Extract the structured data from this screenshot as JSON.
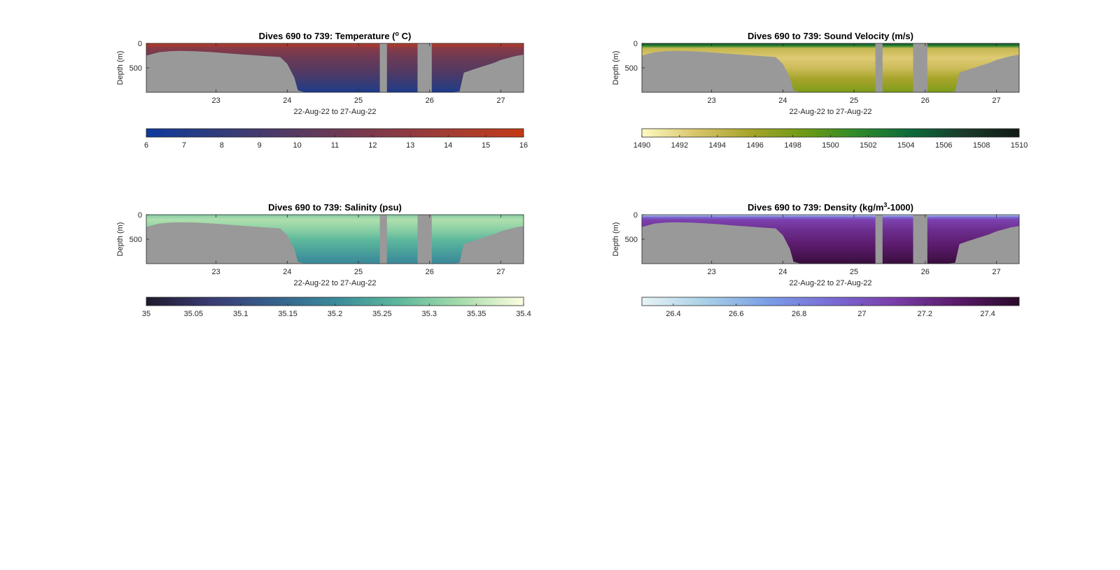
{
  "figure": {
    "background": "#ffffff",
    "land_mask_color": "#999999"
  },
  "chart_data": [
    {
      "type": "heatmap",
      "title_prefix": "Dives 690 to 739: Temperature (",
      "title_sup": "o",
      "title_suffix": " C)",
      "ylabel": "Depth (m)",
      "xlabel": "22-Aug-22 to 27-Aug-22",
      "xlim": [
        22.02,
        27.32
      ],
      "ylim": [
        0,
        1000
      ],
      "y_reversed": true,
      "xticks": [
        {
          "value": 23,
          "label": "23"
        },
        {
          "value": 24,
          "label": "24"
        },
        {
          "value": 25,
          "label": "25"
        },
        {
          "value": 26,
          "label": "26"
        },
        {
          "value": 27,
          "label": "27"
        }
      ],
      "yticks": [
        {
          "value": 0,
          "label": "0"
        },
        {
          "value": 500,
          "label": "500"
        }
      ],
      "gaps": [
        [
          25.3,
          25.4
        ],
        [
          25.83,
          26.03
        ]
      ],
      "seafloor": [
        [
          22.02,
          250
        ],
        [
          22.1,
          220
        ],
        [
          22.2,
          180
        ],
        [
          22.35,
          160
        ],
        [
          22.5,
          155
        ],
        [
          22.7,
          160
        ],
        [
          22.9,
          175
        ],
        [
          23.1,
          195
        ],
        [
          23.3,
          220
        ],
        [
          23.5,
          240
        ],
        [
          23.7,
          260
        ],
        [
          23.9,
          280
        ],
        [
          24.0,
          420
        ],
        [
          24.1,
          700
        ],
        [
          24.15,
          960
        ],
        [
          24.25,
          1000
        ],
        [
          26.3,
          1000
        ],
        [
          26.42,
          980
        ],
        [
          26.48,
          600
        ],
        [
          26.6,
          540
        ],
        [
          26.75,
          470
        ],
        [
          26.9,
          400
        ],
        [
          27.0,
          340
        ],
        [
          27.1,
          300
        ],
        [
          27.2,
          260
        ],
        [
          27.32,
          230
        ]
      ],
      "colorbar": {
        "min": 6,
        "max": 16,
        "ticks": [
          {
            "value": 6,
            "label": "6"
          },
          {
            "value": 7,
            "label": "7"
          },
          {
            "value": 8,
            "label": "8"
          },
          {
            "value": 9,
            "label": "9"
          },
          {
            "value": 10,
            "label": "10"
          },
          {
            "value": 11,
            "label": "11"
          },
          {
            "value": 12,
            "label": "12"
          },
          {
            "value": 13,
            "label": "13"
          },
          {
            "value": 14,
            "label": "14"
          },
          {
            "value": 15,
            "label": "15"
          },
          {
            "value": 16,
            "label": "16"
          }
        ],
        "stops": [
          "#0d3a9e",
          "#2c3c7e",
          "#4a3a68",
          "#6a3a55",
          "#8a3a44",
          "#a83c30",
          "#c23a14"
        ]
      },
      "profile": [
        {
          "depth": 0,
          "value": 15.2
        },
        {
          "depth": 100,
          "value": 12.5
        },
        {
          "depth": 300,
          "value": 11.0
        },
        {
          "depth": 500,
          "value": 10.2
        },
        {
          "depth": 700,
          "value": 9.0
        },
        {
          "depth": 900,
          "value": 7.6
        },
        {
          "depth": 1000,
          "value": 6.8
        }
      ]
    },
    {
      "type": "heatmap",
      "title_prefix": "Dives 690 to 739: Sound Velocity (m/s)",
      "title_sup": "",
      "title_suffix": "",
      "ylabel": "Depth (m)",
      "xlabel": "22-Aug-22 to 27-Aug-22",
      "xlim": [
        22.02,
        27.32
      ],
      "ylim": [
        0,
        1000
      ],
      "y_reversed": true,
      "xticks": [
        {
          "value": 23,
          "label": "23"
        },
        {
          "value": 24,
          "label": "24"
        },
        {
          "value": 25,
          "label": "25"
        },
        {
          "value": 26,
          "label": "26"
        },
        {
          "value": 27,
          "label": "27"
        }
      ],
      "yticks": [
        {
          "value": 0,
          "label": "0"
        },
        {
          "value": 500,
          "label": "500"
        }
      ],
      "gaps": [
        [
          25.3,
          25.4
        ],
        [
          25.83,
          26.03
        ]
      ],
      "seafloor": [
        [
          22.02,
          250
        ],
        [
          22.1,
          220
        ],
        [
          22.2,
          180
        ],
        [
          22.35,
          160
        ],
        [
          22.5,
          155
        ],
        [
          22.7,
          160
        ],
        [
          22.9,
          175
        ],
        [
          23.1,
          195
        ],
        [
          23.3,
          220
        ],
        [
          23.5,
          240
        ],
        [
          23.7,
          260
        ],
        [
          23.9,
          280
        ],
        [
          24.0,
          420
        ],
        [
          24.1,
          700
        ],
        [
          24.15,
          960
        ],
        [
          24.25,
          1000
        ],
        [
          26.3,
          1000
        ],
        [
          26.42,
          980
        ],
        [
          26.48,
          600
        ],
        [
          26.6,
          540
        ],
        [
          26.75,
          470
        ],
        [
          26.9,
          400
        ],
        [
          27.0,
          340
        ],
        [
          27.1,
          300
        ],
        [
          27.2,
          260
        ],
        [
          27.32,
          230
        ]
      ],
      "colorbar": {
        "min": 1490,
        "max": 1510,
        "ticks": [
          {
            "value": 1490,
            "label": "1490"
          },
          {
            "value": 1492,
            "label": "1492"
          },
          {
            "value": 1494,
            "label": "1494"
          },
          {
            "value": 1496,
            "label": "1496"
          },
          {
            "value": 1498,
            "label": "1498"
          },
          {
            "value": 1500,
            "label": "1500"
          },
          {
            "value": 1502,
            "label": "1502"
          },
          {
            "value": 1504,
            "label": "1504"
          },
          {
            "value": 1506,
            "label": "1506"
          },
          {
            "value": 1508,
            "label": "1508"
          },
          {
            "value": 1510,
            "label": "1510"
          }
        ],
        "stops": [
          "#fdfbc2",
          "#d8c46a",
          "#a6a42a",
          "#6e9a14",
          "#2f8a2a",
          "#0c6a3a",
          "#1a3a2a",
          "#111a14"
        ]
      },
      "profile": [
        {
          "depth": 0,
          "value": 1506.0
        },
        {
          "depth": 50,
          "value": 1502.0
        },
        {
          "depth": 100,
          "value": 1494.0
        },
        {
          "depth": 300,
          "value": 1492.5
        },
        {
          "depth": 500,
          "value": 1493.5
        },
        {
          "depth": 700,
          "value": 1495.5
        },
        {
          "depth": 900,
          "value": 1497.0
        },
        {
          "depth": 1000,
          "value": 1498.0
        }
      ]
    },
    {
      "type": "heatmap",
      "title_prefix": "Dives 690 to 739: Salinity (psu)",
      "title_sup": "",
      "title_suffix": "",
      "ylabel": "Depth (m)",
      "xlabel": "22-Aug-22 to 27-Aug-22",
      "xlim": [
        22.02,
        27.32
      ],
      "ylim": [
        0,
        1000
      ],
      "y_reversed": true,
      "xticks": [
        {
          "value": 23,
          "label": "23"
        },
        {
          "value": 24,
          "label": "24"
        },
        {
          "value": 25,
          "label": "25"
        },
        {
          "value": 26,
          "label": "26"
        },
        {
          "value": 27,
          "label": "27"
        }
      ],
      "yticks": [
        {
          "value": 0,
          "label": "0"
        },
        {
          "value": 500,
          "label": "500"
        }
      ],
      "gaps": [
        [
          25.3,
          25.4
        ],
        [
          25.83,
          26.03
        ]
      ],
      "seafloor": [
        [
          22.02,
          250
        ],
        [
          22.1,
          220
        ],
        [
          22.2,
          180
        ],
        [
          22.35,
          160
        ],
        [
          22.5,
          155
        ],
        [
          22.7,
          160
        ],
        [
          22.9,
          175
        ],
        [
          23.1,
          195
        ],
        [
          23.3,
          220
        ],
        [
          23.5,
          240
        ],
        [
          23.7,
          260
        ],
        [
          23.9,
          280
        ],
        [
          24.0,
          420
        ],
        [
          24.1,
          700
        ],
        [
          24.15,
          960
        ],
        [
          24.25,
          1000
        ],
        [
          26.3,
          1000
        ],
        [
          26.42,
          980
        ],
        [
          26.48,
          600
        ],
        [
          26.6,
          540
        ],
        [
          26.75,
          470
        ],
        [
          26.9,
          400
        ],
        [
          27.0,
          340
        ],
        [
          27.1,
          300
        ],
        [
          27.2,
          260
        ],
        [
          27.32,
          230
        ]
      ],
      "colorbar": {
        "min": 35,
        "max": 35.4,
        "ticks": [
          {
            "value": 35,
            "label": "35"
          },
          {
            "value": 35.05,
            "label": "35.05"
          },
          {
            "value": 35.1,
            "label": "35.1"
          },
          {
            "value": 35.15,
            "label": "35.15"
          },
          {
            "value": 35.2,
            "label": "35.2"
          },
          {
            "value": 35.25,
            "label": "35.25"
          },
          {
            "value": 35.3,
            "label": "35.3"
          },
          {
            "value": 35.35,
            "label": "35.35"
          },
          {
            "value": 35.4,
            "label": "35.4"
          }
        ],
        "stops": [
          "#1e1a2c",
          "#3a3a72",
          "#35608c",
          "#3a8a9a",
          "#5cb89c",
          "#a6dcaa",
          "#fdfde0"
        ]
      },
      "profile": [
        {
          "depth": 0,
          "value": 35.3
        },
        {
          "depth": 100,
          "value": 35.34
        },
        {
          "depth": 300,
          "value": 35.31
        },
        {
          "depth": 500,
          "value": 35.27
        },
        {
          "depth": 700,
          "value": 35.24
        },
        {
          "depth": 900,
          "value": 35.21
        },
        {
          "depth": 1000,
          "value": 35.2
        }
      ]
    },
    {
      "type": "heatmap",
      "title_prefix": "Dives 690 to 739: Density (kg/m",
      "title_sup": "3",
      "title_suffix": "-1000)",
      "ylabel": "Depth (m)",
      "xlabel": "22-Aug-22 to 27-Aug-22",
      "xlim": [
        22.02,
        27.32
      ],
      "ylim": [
        0,
        1000
      ],
      "y_reversed": true,
      "xticks": [
        {
          "value": 23,
          "label": "23"
        },
        {
          "value": 24,
          "label": "24"
        },
        {
          "value": 25,
          "label": "25"
        },
        {
          "value": 26,
          "label": "26"
        },
        {
          "value": 27,
          "label": "27"
        }
      ],
      "yticks": [
        {
          "value": 0,
          "label": "0"
        },
        {
          "value": 500,
          "label": "500"
        }
      ],
      "gaps": [
        [
          25.3,
          25.4
        ],
        [
          25.83,
          26.03
        ]
      ],
      "seafloor": [
        [
          22.02,
          250
        ],
        [
          22.1,
          220
        ],
        [
          22.2,
          180
        ],
        [
          22.35,
          160
        ],
        [
          22.5,
          155
        ],
        [
          22.7,
          160
        ],
        [
          22.9,
          175
        ],
        [
          23.1,
          195
        ],
        [
          23.3,
          220
        ],
        [
          23.5,
          240
        ],
        [
          23.7,
          260
        ],
        [
          23.9,
          280
        ],
        [
          24.0,
          420
        ],
        [
          24.1,
          700
        ],
        [
          24.15,
          960
        ],
        [
          24.25,
          1000
        ],
        [
          26.3,
          1000
        ],
        [
          26.42,
          980
        ],
        [
          26.48,
          600
        ],
        [
          26.6,
          540
        ],
        [
          26.75,
          470
        ],
        [
          26.9,
          400
        ],
        [
          27.0,
          340
        ],
        [
          27.1,
          300
        ],
        [
          27.2,
          260
        ],
        [
          27.32,
          230
        ]
      ],
      "colorbar": {
        "min": 26.3,
        "max": 27.5,
        "ticks": [
          {
            "value": 26.4,
            "label": "26.4"
          },
          {
            "value": 26.6,
            "label": "26.6"
          },
          {
            "value": 26.8,
            "label": "26.8"
          },
          {
            "value": 27,
            "label": "27"
          },
          {
            "value": 27.2,
            "label": "27.2"
          },
          {
            "value": 27.4,
            "label": "27.4"
          }
        ],
        "stops": [
          "#e8f4f6",
          "#a8d0e6",
          "#7a9ee6",
          "#7a6cd6",
          "#7a3eaa",
          "#5a1a6a",
          "#2a0a2a"
        ]
      },
      "profile": [
        {
          "depth": 0,
          "value": 26.45
        },
        {
          "depth": 50,
          "value": 26.9
        },
        {
          "depth": 100,
          "value": 27.08
        },
        {
          "depth": 300,
          "value": 27.18
        },
        {
          "depth": 500,
          "value": 27.25
        },
        {
          "depth": 700,
          "value": 27.32
        },
        {
          "depth": 900,
          "value": 27.4
        },
        {
          "depth": 1000,
          "value": 27.44
        }
      ]
    }
  ]
}
